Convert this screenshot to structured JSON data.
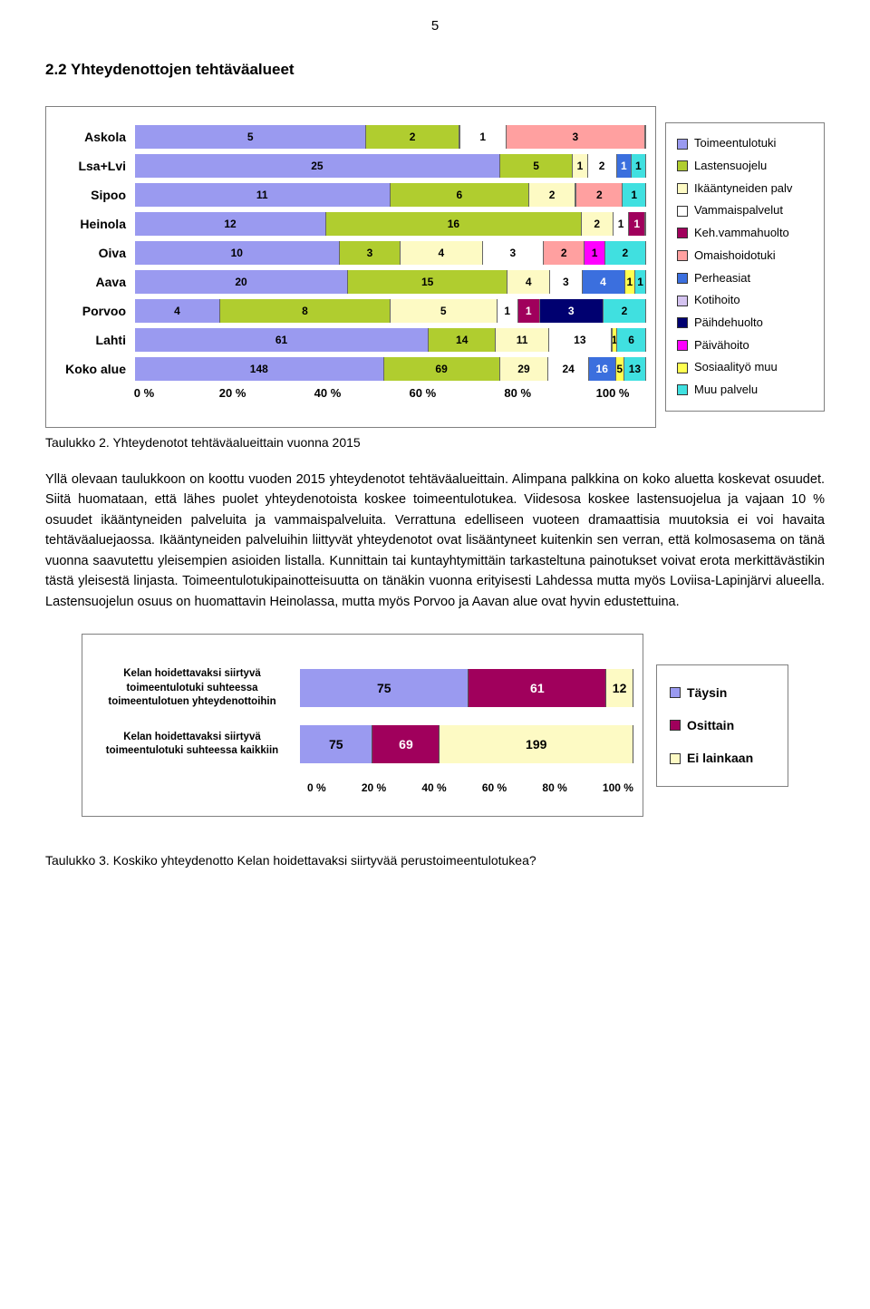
{
  "page_number": "5",
  "section_title": "2.2 Yhteydenottojen tehtäväalueet",
  "chart1": {
    "type": "stacked-bar-horizontal",
    "axis_labels": [
      "0 %",
      "20 %",
      "40 %",
      "60 %",
      "80 %",
      "100 %"
    ],
    "colors": {
      "Toimeentulotuki": "#9a9af0",
      "Lastensuojelu": "#b0cd2f",
      "Ikääntyneiden palv": "#fdfac4",
      "Vammaispalvelut": "#ffffff",
      "Keh.vammahuolto": "#a0005c",
      "Omaishoidotuki": "#ffa0a0",
      "Perheasiat": "#3b6fde",
      "Kotihoito": "#d4c3f0",
      "Päihdehuolto": "#000070",
      "Päivähoito": "#ff00ff",
      "Sosiaalityö muu": "#ffff50",
      "Muu palvelu": "#40e0e0"
    },
    "legend_order": [
      "Toimeentulotuki",
      "Lastensuojelu",
      "Ikääntyneiden palv",
      "Vammaispalvelut",
      "Keh.vammahuolto",
      "Omaishoidotuki",
      "Perheasiat",
      "Kotihoito",
      "Päihdehuolto",
      "Päivähoito",
      "Sosiaalityö muu",
      "Muu palvelu"
    ],
    "rows": [
      {
        "label": "Askola",
        "segs": [
          [
            "Toimeentulotuki",
            5
          ],
          [
            "Lastensuojelu",
            2
          ],
          [
            "Ikääntyneiden palv",
            0
          ],
          [
            "Vammaispalvelut",
            1
          ],
          [
            "Omaishoidotuki",
            3
          ],
          [
            "Muu palvelu",
            0
          ]
        ]
      },
      {
        "label": "Lsa+Lvi",
        "segs": [
          [
            "Toimeentulotuki",
            25
          ],
          [
            "Lastensuojelu",
            5
          ],
          [
            "Ikääntyneiden palv",
            1
          ],
          [
            "Vammaispalvelut",
            2
          ],
          [
            "Perheasiat",
            1
          ],
          [
            "Muu palvelu",
            1
          ]
        ]
      },
      {
        "label": "Sipoo",
        "segs": [
          [
            "Toimeentulotuki",
            11
          ],
          [
            "Lastensuojelu",
            6
          ],
          [
            "Ikääntyneiden palv",
            2
          ],
          [
            "Vammaispalvelut",
            0
          ],
          [
            "Omaishoidotuki",
            2
          ],
          [
            "Muu palvelu",
            1
          ]
        ]
      },
      {
        "label": "Heinola",
        "segs": [
          [
            "Toimeentulotuki",
            12
          ],
          [
            "Lastensuojelu",
            16
          ],
          [
            "Ikääntyneiden palv",
            2
          ],
          [
            "Vammaispalvelut",
            1
          ],
          [
            "Keh.vammahuolto",
            1
          ],
          [
            "Muu palvelu",
            0
          ]
        ]
      },
      {
        "label": "Oiva",
        "segs": [
          [
            "Toimeentulotuki",
            10
          ],
          [
            "Lastensuojelu",
            3
          ],
          [
            "Ikääntyneiden palv",
            4
          ],
          [
            "Vammaispalvelut",
            3
          ],
          [
            "Omaishoidotuki",
            2
          ],
          [
            "Päivähoito",
            1
          ],
          [
            "Muu palvelu",
            2
          ]
        ]
      },
      {
        "label": "Aava",
        "segs": [
          [
            "Toimeentulotuki",
            20
          ],
          [
            "Lastensuojelu",
            15
          ],
          [
            "Ikääntyneiden palv",
            4
          ],
          [
            "Vammaispalvelut",
            3
          ],
          [
            "Perheasiat",
            4
          ],
          [
            "Sosiaalityö muu",
            1
          ],
          [
            "Muu palvelu",
            1
          ]
        ]
      },
      {
        "label": "Porvoo",
        "segs": [
          [
            "Toimeentulotuki",
            4
          ],
          [
            "Lastensuojelu",
            8
          ],
          [
            "Ikääntyneiden palv",
            5
          ],
          [
            "Vammaispalvelut",
            1
          ],
          [
            "Keh.vammahuolto",
            1
          ],
          [
            "Päihdehuolto",
            3
          ],
          [
            "Muu palvelu",
            2
          ]
        ]
      },
      {
        "label": "Lahti",
        "segs": [
          [
            "Toimeentulotuki",
            61
          ],
          [
            "Lastensuojelu",
            14
          ],
          [
            "Ikääntyneiden palv",
            11
          ],
          [
            "Vammaispalvelut",
            13
          ],
          [
            "Omaishoidotuki",
            0
          ],
          [
            "Sosiaalityö muu",
            1
          ],
          [
            "Muu palvelu",
            6
          ]
        ]
      },
      {
        "label": "Koko alue",
        "segs": [
          [
            "Toimeentulotuki",
            148
          ],
          [
            "Lastensuojelu",
            69
          ],
          [
            "Ikääntyneiden palv",
            29
          ],
          [
            "Vammaispalvelut",
            24
          ],
          [
            "Perheasiat",
            16
          ],
          [
            "Sosiaalityö muu",
            5
          ],
          [
            "Muu palvelu",
            13
          ]
        ]
      }
    ]
  },
  "caption1": "Taulukko 2. Yhteydenotot tehtäväalueittain vuonna 2015",
  "body_text": "Yllä olevaan taulukkoon on koottu vuoden 2015 yhteydenotot tehtäväalueittain. Alimpana palkkina on koko aluetta koskevat osuudet. Siitä huomataan, että lähes puolet yhteydenotoista koskee toimeentulotukea. Viidesosa koskee lastensuojelua ja vajaan 10 % osuudet ikääntyneiden palveluita ja vammaispalveluita. Verrattuna edelliseen vuoteen dramaattisia muutoksia ei voi havaita tehtäväaluejaossa. Ikääntyneiden palveluihin liittyvät yhteydenotot ovat lisääntyneet kuitenkin sen verran, että kolmosasema on tänä vuonna saavutettu yleisempien asioiden listalla. Kunnittain tai kuntayhtymittäin tarkasteltuna painotukset voivat erota merkittävästikin tästä yleisestä linjasta. Toimeentulotukipainotteisuutta on tänäkin vuonna erityisesti Lahdessa mutta myös Loviisa-Lapinjärvi alueella. Lastensuojelun osuus on huomattavin Heinolassa, mutta myös Porvoo ja Aavan alue ovat hyvin edustettuina.",
  "chart2": {
    "type": "stacked-bar-horizontal",
    "axis_labels": [
      "0 %",
      "20 %",
      "40 %",
      "60 %",
      "80 %",
      "100 %"
    ],
    "colors": {
      "Täysin": "#9a9af0",
      "Osittain": "#a0005c",
      "Ei lainkaan": "#fdfac4"
    },
    "legend_order": [
      "Täysin",
      "Osittain",
      "Ei lainkaan"
    ],
    "rows": [
      {
        "label": "Kelan hoidettavaksi siirtyvä toimeentulotuki suhteessa toimeentulotuen yhteydenottoihin",
        "segs": [
          [
            "Täysin",
            75
          ],
          [
            "Osittain",
            61
          ],
          [
            "Ei lainkaan",
            12
          ]
        ]
      },
      {
        "label": "Kelan hoidettavaksi siirtyvä toimeentulotuki suhteessa kaikkiin",
        "segs": [
          [
            "Täysin",
            75
          ],
          [
            "Osittain",
            69
          ],
          [
            "Ei lainkaan",
            199
          ]
        ]
      }
    ]
  },
  "caption2": "Taulukko 3. Koskiko yhteydenotto Kelan hoidettavaksi siirtyvää perustoimeentulotukea?"
}
